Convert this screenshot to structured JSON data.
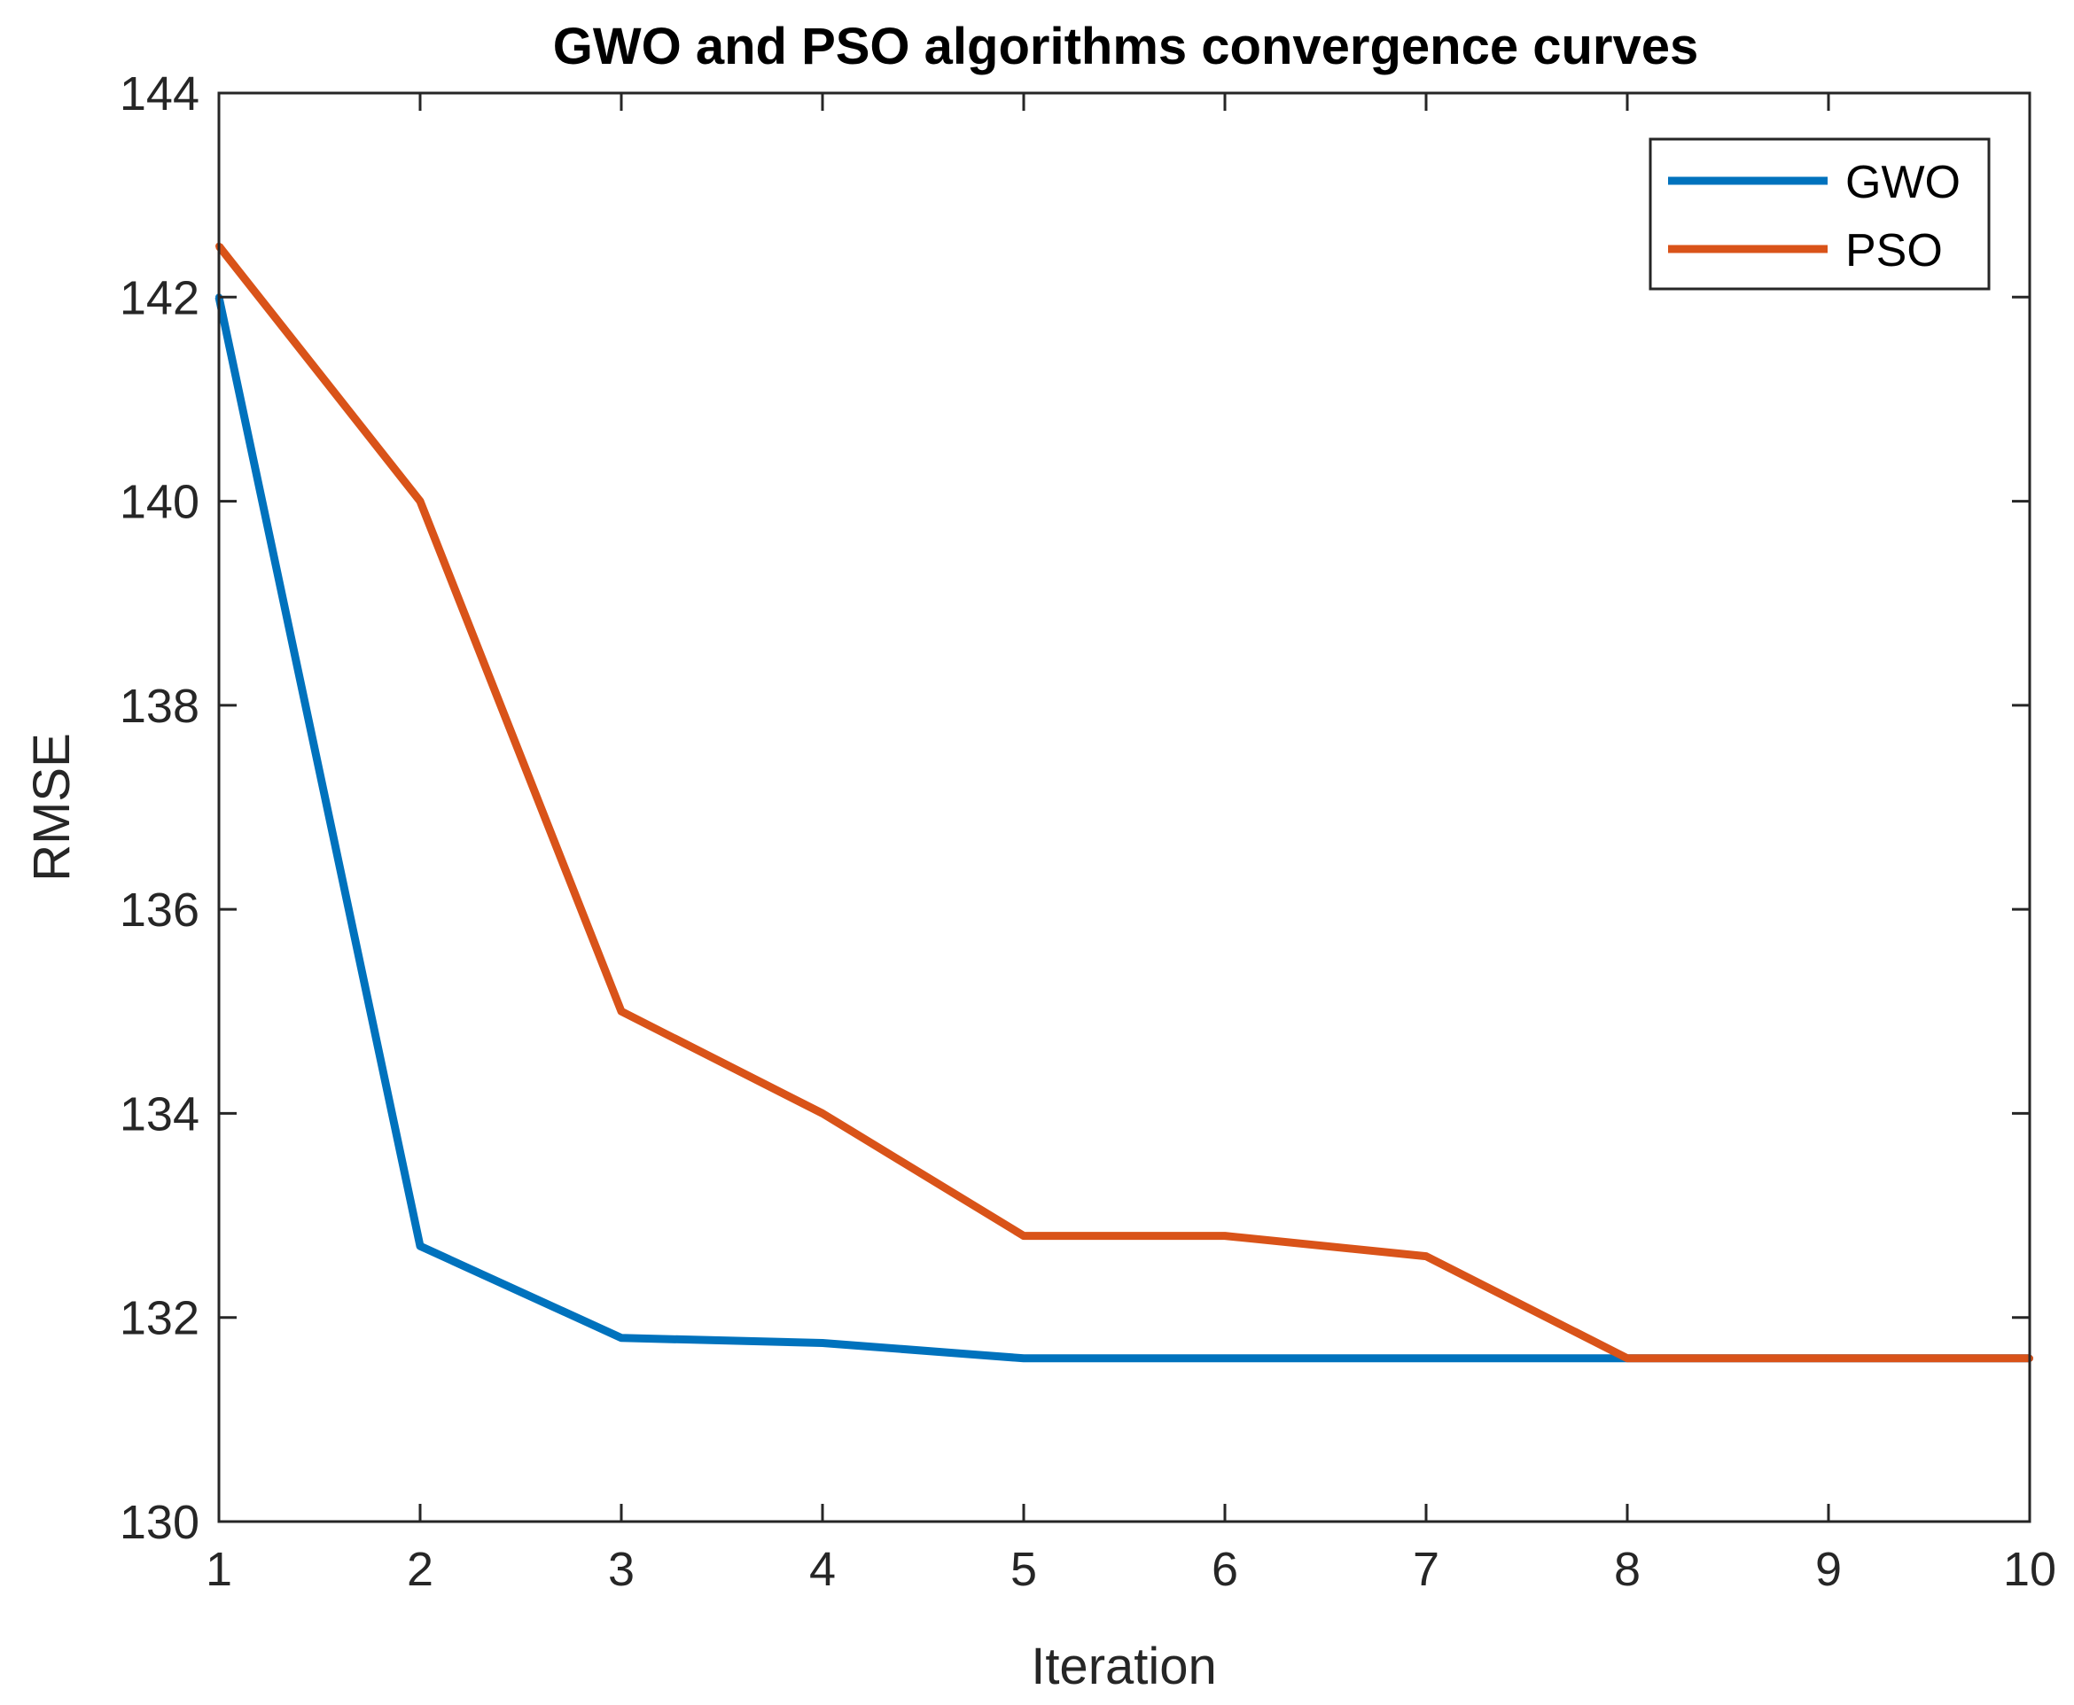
{
  "chart_data": {
    "type": "line",
    "title": "GWO and PSO algorithms convergence curves",
    "xlabel": "Iteration",
    "ylabel": "RMSE",
    "xlim": [
      1,
      10
    ],
    "ylim": [
      130,
      144
    ],
    "xticks": [
      1,
      2,
      3,
      4,
      5,
      6,
      7,
      8,
      9,
      10
    ],
    "yticks": [
      130,
      132,
      134,
      136,
      138,
      140,
      142,
      144
    ],
    "x": [
      1,
      2,
      3,
      4,
      5,
      6,
      7,
      8,
      9,
      10
    ],
    "legend_position": "top-right",
    "grid": false,
    "series": [
      {
        "name": "GWO",
        "color": "#0072BD",
        "values": [
          142.0,
          132.7,
          131.8,
          131.75,
          131.6,
          131.6,
          131.6,
          131.6,
          131.6,
          131.6
        ]
      },
      {
        "name": "PSO",
        "color": "#D95319",
        "values": [
          142.5,
          140.0,
          135.0,
          134.0,
          132.8,
          132.8,
          132.6,
          131.6,
          131.6,
          131.6
        ]
      }
    ]
  }
}
